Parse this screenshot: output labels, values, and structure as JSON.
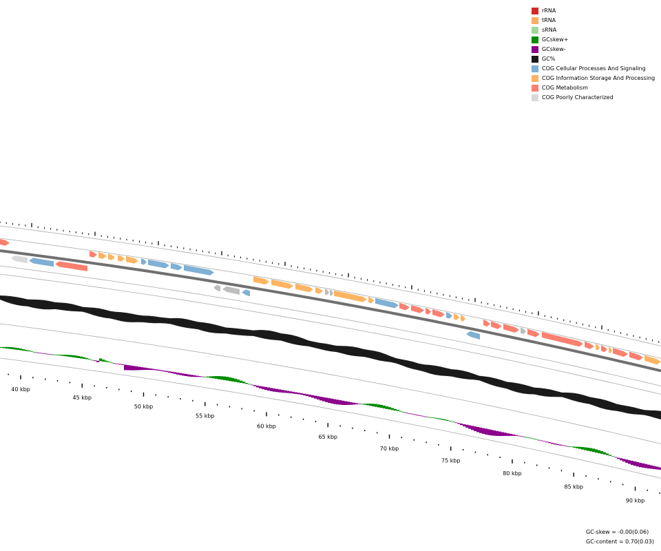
{
  "legend": {
    "items": [
      {
        "label": "rRNA",
        "color": "#d62728"
      },
      {
        "label": "tRNA",
        "color": "#fdae61"
      },
      {
        "label": "sRNA",
        "color": "#a1d99b"
      },
      {
        "label": "GCskew+",
        "color": "#008c00"
      },
      {
        "label": "GCskew-",
        "color": "#8c008c"
      },
      {
        "label": "GC%",
        "color": "#1a1a1a"
      },
      {
        "label": "COG Cellular Processes And Signaling",
        "color": "#7fb0d5"
      },
      {
        "label": "COG Information Storage And Processing",
        "color": "#fdb462"
      },
      {
        "label": "COG Metabolism",
        "color": "#f9806f"
      },
      {
        "label": "COG Poorly Characterized",
        "color": "#d9d9d9"
      }
    ]
  },
  "axis": {
    "tick_labels": [
      "40 kbp",
      "45 kbp",
      "50 kbp",
      "55 kbp",
      "60 kbp",
      "65 kbp",
      "70 kbp",
      "75 kbp",
      "80 kbp",
      "85 kbp",
      "90 kbp"
    ]
  },
  "stats": {
    "gc_skew": "GC-skew = -0.00(0.06)",
    "gc_content": "GC-content = 0.70(0.03)"
  }
}
